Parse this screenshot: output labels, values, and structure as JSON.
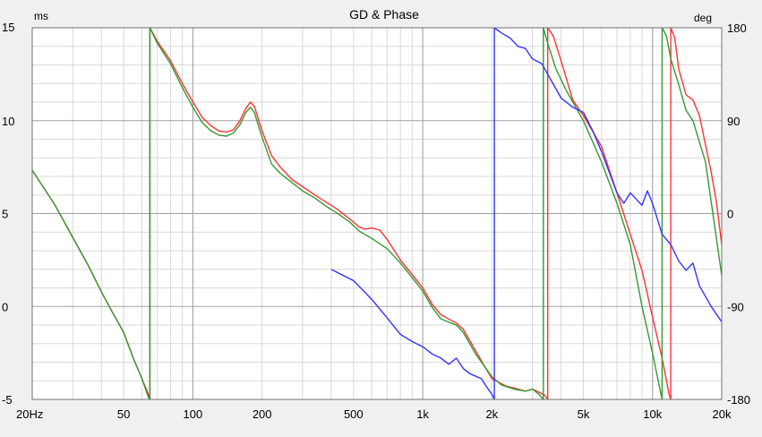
{
  "chart_data": {
    "type": "line",
    "title": "GD & Phase",
    "left_axis_unit": "ms",
    "right_axis_unit": "deg",
    "x_scale": "log",
    "xlim": [
      20,
      20000
    ],
    "ylim_left": [
      -5,
      15
    ],
    "ylim_right": [
      -180,
      180
    ],
    "x_ticks": [
      {
        "value": 20,
        "label": "20Hz"
      },
      {
        "value": 50,
        "label": "50"
      },
      {
        "value": 100,
        "label": "100"
      },
      {
        "value": 200,
        "label": "200"
      },
      {
        "value": 500,
        "label": "500"
      },
      {
        "value": 1000,
        "label": "1k"
      },
      {
        "value": 2000,
        "label": "2k"
      },
      {
        "value": 5000,
        "label": "5k"
      },
      {
        "value": 10000,
        "label": "10k"
      },
      {
        "value": 20000,
        "label": "20k"
      }
    ],
    "y_left_ticks": [
      {
        "value": 15,
        "label": "15"
      },
      {
        "value": 10,
        "label": "10"
      },
      {
        "value": 5,
        "label": "5"
      },
      {
        "value": 0,
        "label": "0"
      },
      {
        "value": -5,
        "label": "-5"
      }
    ],
    "y_right_ticks": [
      {
        "value": 180,
        "label": "180"
      },
      {
        "value": 90,
        "label": "90"
      },
      {
        "value": 0,
        "label": "0"
      },
      {
        "value": -90,
        "label": "-90"
      },
      {
        "value": -180,
        "label": "-180"
      }
    ],
    "grid": true,
    "legend": "none",
    "colors": {
      "grid_major": "#a0a0a0",
      "grid_minor": "#d8d8d8",
      "plot_bg": "#ffffff"
    },
    "series": [
      {
        "color": "#ff3333",
        "axis": "right",
        "points": [
          [
            20,
            42
          ],
          [
            25,
            9
          ],
          [
            30,
            -23
          ],
          [
            35,
            -50
          ],
          [
            40,
            -76
          ],
          [
            45,
            -97
          ],
          [
            50,
            -115
          ],
          [
            55,
            -140
          ],
          [
            60,
            -160
          ],
          [
            64,
            -175
          ],
          [
            65,
            -180
          ],
          [
            65,
            180
          ],
          [
            70,
            167
          ],
          [
            80,
            148
          ],
          [
            90,
            126
          ],
          [
            100,
            108
          ],
          [
            110,
            93
          ],
          [
            120,
            85
          ],
          [
            130,
            80
          ],
          [
            140,
            79
          ],
          [
            150,
            81
          ],
          [
            160,
            90
          ],
          [
            170,
            102
          ],
          [
            178,
            108
          ],
          [
            185,
            104
          ],
          [
            200,
            80
          ],
          [
            220,
            56
          ],
          [
            240,
            45
          ],
          [
            270,
            33
          ],
          [
            300,
            26
          ],
          [
            340,
            18
          ],
          [
            380,
            11
          ],
          [
            420,
            5
          ],
          [
            480,
            -5
          ],
          [
            530,
            -13
          ],
          [
            560,
            -15
          ],
          [
            600,
            -14
          ],
          [
            650,
            -16
          ],
          [
            700,
            -25
          ],
          [
            800,
            -45
          ],
          [
            900,
            -59
          ],
          [
            1000,
            -72
          ],
          [
            1100,
            -88
          ],
          [
            1200,
            -98
          ],
          [
            1400,
            -106
          ],
          [
            1500,
            -112
          ],
          [
            1700,
            -133
          ],
          [
            2000,
            -160
          ],
          [
            2300,
            -167
          ],
          [
            2500,
            -169
          ],
          [
            2800,
            -172
          ],
          [
            3000,
            -170
          ],
          [
            3200,
            -173
          ],
          [
            3400,
            -176
          ],
          [
            3500,
            -180
          ],
          [
            3500,
            180
          ],
          [
            3700,
            172
          ],
          [
            4000,
            148
          ],
          [
            4500,
            110
          ],
          [
            5000,
            95
          ],
          [
            6000,
            65
          ],
          [
            7000,
            20
          ],
          [
            8000,
            -20
          ],
          [
            9000,
            -55
          ],
          [
            10000,
            -100
          ],
          [
            11000,
            -140
          ],
          [
            11800,
            -175
          ],
          [
            12000,
            -180
          ],
          [
            12000,
            180
          ],
          [
            12500,
            170
          ],
          [
            13000,
            140
          ],
          [
            14000,
            115
          ],
          [
            15000,
            110
          ],
          [
            16000,
            95
          ],
          [
            18000,
            40
          ],
          [
            19000,
            10
          ],
          [
            20000,
            -30
          ]
        ]
      },
      {
        "color": "#339933",
        "axis": "right",
        "points": [
          [
            20,
            42
          ],
          [
            25,
            9
          ],
          [
            30,
            -23
          ],
          [
            35,
            -50
          ],
          [
            40,
            -76
          ],
          [
            45,
            -97
          ],
          [
            50,
            -115
          ],
          [
            55,
            -140
          ],
          [
            60,
            -160
          ],
          [
            64,
            -178
          ],
          [
            65,
            -180
          ],
          [
            65,
            180
          ],
          [
            70,
            165
          ],
          [
            80,
            145
          ],
          [
            90,
            122
          ],
          [
            100,
            103
          ],
          [
            110,
            88
          ],
          [
            120,
            80
          ],
          [
            130,
            76
          ],
          [
            140,
            75
          ],
          [
            150,
            78
          ],
          [
            160,
            86
          ],
          [
            170,
            98
          ],
          [
            178,
            103
          ],
          [
            185,
            98
          ],
          [
            200,
            74
          ],
          [
            220,
            48
          ],
          [
            240,
            39
          ],
          [
            270,
            30
          ],
          [
            300,
            22
          ],
          [
            340,
            15
          ],
          [
            380,
            7
          ],
          [
            420,
            1
          ],
          [
            480,
            -8
          ],
          [
            530,
            -17
          ],
          [
            600,
            -24
          ],
          [
            700,
            -34
          ],
          [
            800,
            -48
          ],
          [
            900,
            -62
          ],
          [
            1000,
            -75
          ],
          [
            1100,
            -91
          ],
          [
            1200,
            -102
          ],
          [
            1400,
            -108
          ],
          [
            1500,
            -115
          ],
          [
            1700,
            -136
          ],
          [
            2000,
            -158
          ],
          [
            2200,
            -166
          ],
          [
            2500,
            -170
          ],
          [
            2800,
            -172
          ],
          [
            3000,
            -170
          ],
          [
            3200,
            -175
          ],
          [
            3350,
            -180
          ],
          [
            3350,
            180
          ],
          [
            3500,
            165
          ],
          [
            3800,
            140
          ],
          [
            4200,
            120
          ],
          [
            5000,
            90
          ],
          [
            6000,
            50
          ],
          [
            7000,
            10
          ],
          [
            8000,
            -30
          ],
          [
            9000,
            -90
          ],
          [
            10000,
            -135
          ],
          [
            11000,
            -180
          ],
          [
            11000,
            180
          ],
          [
            11500,
            172
          ],
          [
            12000,
            150
          ],
          [
            13000,
            125
          ],
          [
            14000,
            100
          ],
          [
            15000,
            90
          ],
          [
            17000,
            50
          ],
          [
            20000,
            -60
          ]
        ]
      },
      {
        "color": "#3333ff",
        "axis": "right",
        "points": [
          [
            400,
            -54
          ],
          [
            500,
            -65
          ],
          [
            600,
            -83
          ],
          [
            700,
            -101
          ],
          [
            800,
            -117
          ],
          [
            900,
            -124
          ],
          [
            1000,
            -129
          ],
          [
            1100,
            -136
          ],
          [
            1200,
            -140
          ],
          [
            1300,
            -146
          ],
          [
            1400,
            -140
          ],
          [
            1500,
            -150
          ],
          [
            1600,
            -155
          ],
          [
            1800,
            -160
          ],
          [
            1900,
            -168
          ],
          [
            2000,
            -175
          ],
          [
            2050,
            -180
          ],
          [
            2050,
            180
          ],
          [
            2200,
            175
          ],
          [
            2400,
            170
          ],
          [
            2600,
            162
          ],
          [
            2800,
            160
          ],
          [
            3000,
            150
          ],
          [
            3300,
            145
          ],
          [
            3600,
            130
          ],
          [
            4000,
            112
          ],
          [
            4500,
            103
          ],
          [
            5000,
            98
          ],
          [
            5500,
            80
          ],
          [
            6000,
            60
          ],
          [
            7000,
            20
          ],
          [
            7500,
            10
          ],
          [
            8000,
            20
          ],
          [
            9000,
            8
          ],
          [
            9500,
            22
          ],
          [
            10000,
            10
          ],
          [
            11000,
            -20
          ],
          [
            12000,
            -30
          ],
          [
            13000,
            -46
          ],
          [
            14000,
            -55
          ],
          [
            15000,
            -48
          ],
          [
            16000,
            -70
          ],
          [
            18000,
            -90
          ],
          [
            20000,
            -105
          ]
        ]
      }
    ]
  }
}
